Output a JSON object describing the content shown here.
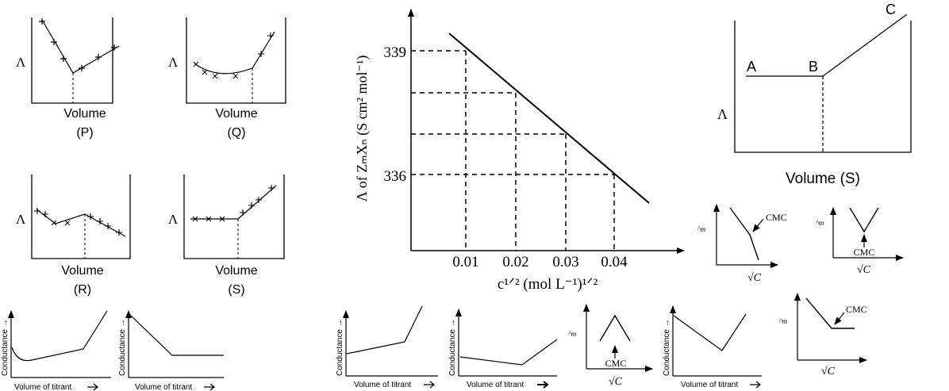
{
  "small_plots": [
    {
      "y_label": "Λ",
      "x_label": "Volume",
      "tag": "(P)"
    },
    {
      "y_label": "Λ",
      "x_label": "Volume",
      "tag": "(Q)"
    },
    {
      "y_label": "Λ",
      "x_label": "Volume",
      "tag": "(R)"
    },
    {
      "y_label": "Λ",
      "x_label": "Volume",
      "tag": "(S)"
    }
  ],
  "titrations": [
    {
      "y_label": "Conductance →",
      "x_label": "Volume of titrant"
    },
    {
      "y_label": "Conductance →",
      "x_label": "Volume of titrant"
    },
    {
      "y_label": "Conductance →",
      "x_label": "Volume of titrant"
    },
    {
      "y_label": "Conductance →",
      "x_label": "Volume of titrant"
    },
    {
      "y_label": "Conductance →",
      "x_label": "Volume of titrant"
    }
  ],
  "main_chart": {
    "y_label": "Λ of ZₘXₙ (S cm² mol⁻¹)",
    "x_label": "c¹ᐟ² (mol L⁻¹)¹ᐟ²",
    "y_ticks": [
      "339",
      "336"
    ],
    "x_ticks": [
      "0.01",
      "0.02",
      "0.03",
      "0.04"
    ]
  },
  "abc_plot": {
    "point_a": "A",
    "point_b": "B",
    "point_c": "C",
    "y_label": "Λ",
    "x_label": "Volume (S)"
  },
  "cmc_plots": [
    {
      "cmc_label": "CMC",
      "y_label": "^m",
      "x_label": "√C"
    },
    {
      "cmc_label": "CMC",
      "y_label": "^m",
      "x_label": "√C"
    },
    {
      "cmc_label": "CMC",
      "y_label": "^m",
      "x_label": "√C"
    },
    {
      "cmc_label": "CMC",
      "y_label": "^m",
      "x_label": "√C"
    }
  ]
}
